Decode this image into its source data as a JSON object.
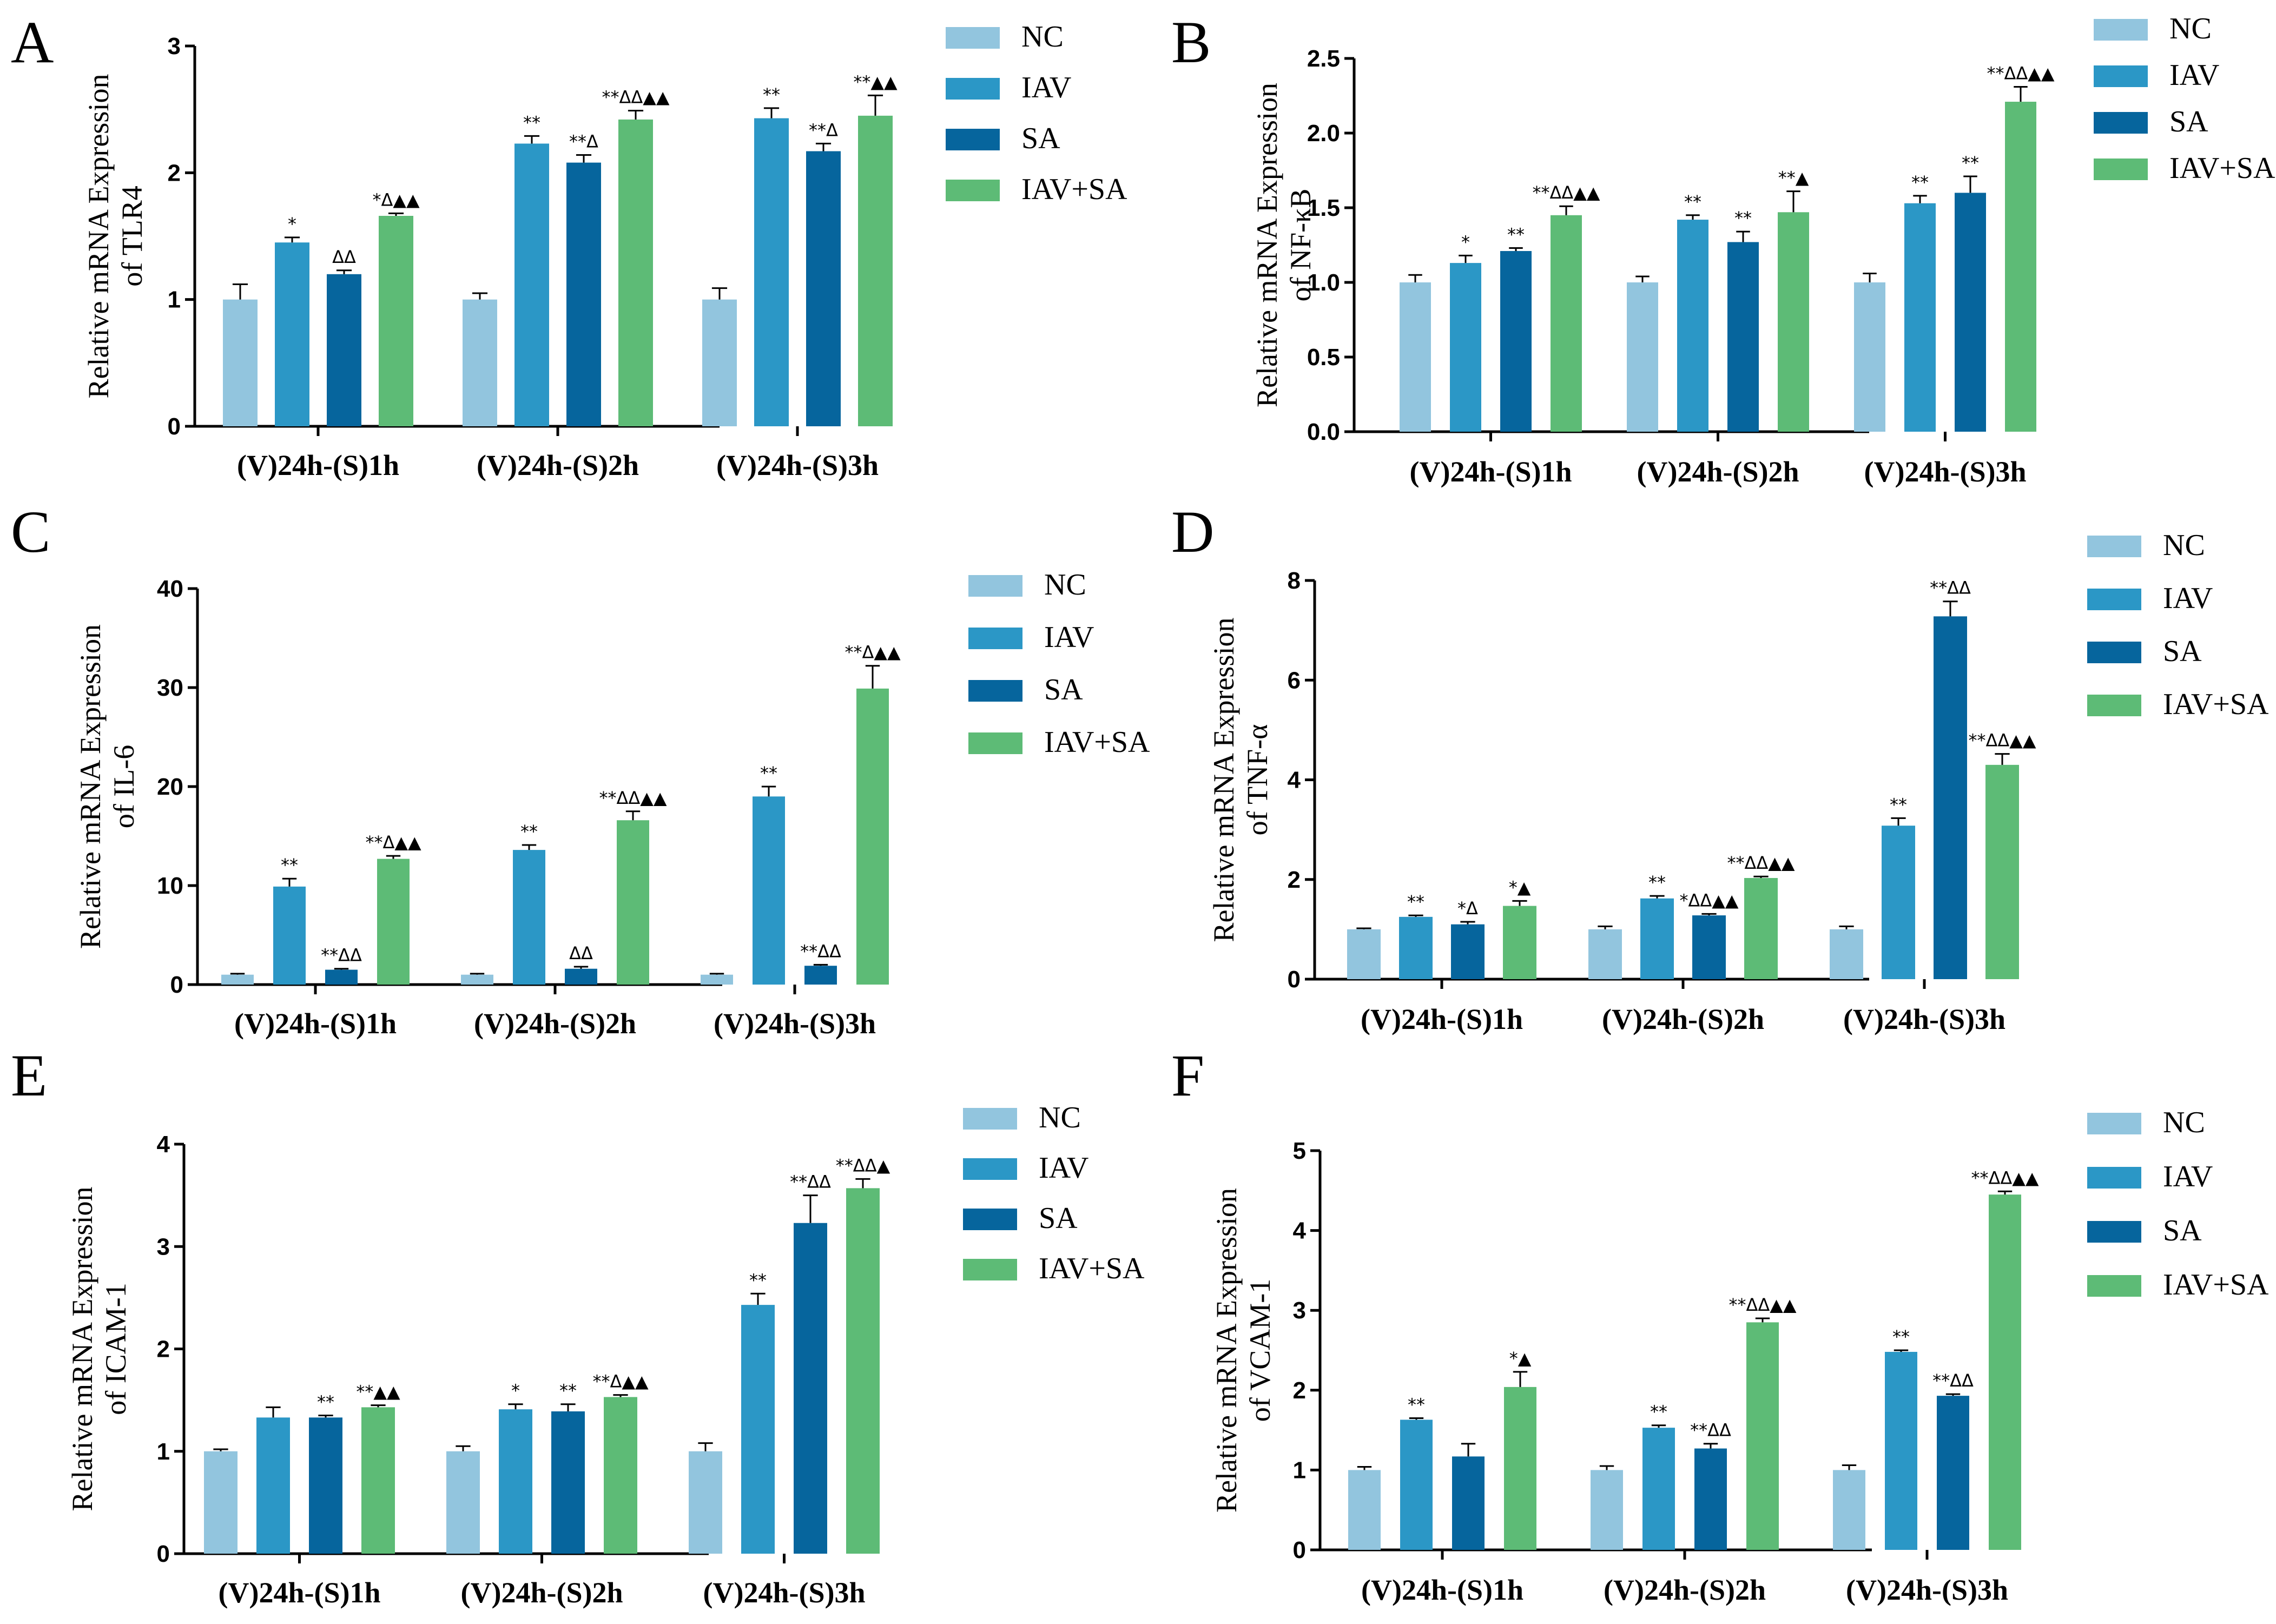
{
  "figure": {
    "series_colors": {
      "NC": "#92c5de",
      "IAV": "#2b97c6",
      "SA": "#06659d",
      "IAV+SA": "#5dbb76"
    }
  },
  "chart_data": [
    {
      "panel": "A",
      "type": "bar",
      "ylabel": [
        "Relative mRNA Expression",
        "of TLR4"
      ],
      "ylim": [
        0,
        3
      ],
      "yticks": [
        "0",
        "1",
        "2",
        "3"
      ],
      "categories": [
        "(V)24h-(S)1h",
        "(V)24h-(S)2h",
        "(V)24h-(S)3h"
      ],
      "legend": [
        "NC",
        "IAV",
        "SA",
        "IAV+SA"
      ],
      "series": [
        {
          "name": "NC",
          "values": [
            1.0,
            1.0,
            1.0
          ],
          "errors": [
            0.12,
            0.05,
            0.09
          ],
          "annotations": [
            "",
            "",
            ""
          ]
        },
        {
          "name": "IAV",
          "values": [
            1.45,
            2.23,
            2.43
          ],
          "errors": [
            0.04,
            0.06,
            0.08
          ],
          "annotations": [
            "*",
            "**",
            "**"
          ]
        },
        {
          "name": "SA",
          "values": [
            1.2,
            2.08,
            2.17
          ],
          "errors": [
            0.03,
            0.06,
            0.06
          ],
          "annotations": [
            "ΔΔ",
            "**Δ",
            "**Δ"
          ]
        },
        {
          "name": "IAV+SA",
          "values": [
            1.66,
            2.42,
            2.45
          ],
          "errors": [
            0.02,
            0.07,
            0.16
          ],
          "annotations": [
            "*Δ▲▲",
            "**ΔΔ▲▲",
            "**▲▲"
          ]
        }
      ]
    },
    {
      "panel": "B",
      "type": "bar",
      "ylabel": [
        "Relative mRNA Expression",
        "of NF-κB"
      ],
      "ylim": [
        0,
        2.5
      ],
      "yticks": [
        "0.0",
        "0.5",
        "1.0",
        "1.5",
        "2.0",
        "2.5"
      ],
      "categories": [
        "(V)24h-(S)1h",
        "(V)24h-(S)2h",
        "(V)24h-(S)3h"
      ],
      "legend": [
        "NC",
        "IAV",
        "SA",
        "IAV+SA"
      ],
      "series": [
        {
          "name": "NC",
          "values": [
            1.0,
            1.0,
            1.0
          ],
          "errors": [
            0.05,
            0.04,
            0.06
          ],
          "annotations": [
            "",
            "",
            ""
          ]
        },
        {
          "name": "IAV",
          "values": [
            1.13,
            1.42,
            1.53
          ],
          "errors": [
            0.05,
            0.03,
            0.05
          ],
          "annotations": [
            "*",
            "**",
            "**"
          ]
        },
        {
          "name": "SA",
          "values": [
            1.21,
            1.27,
            1.6
          ],
          "errors": [
            0.02,
            0.07,
            0.11
          ],
          "annotations": [
            "**",
            "**",
            "**"
          ]
        },
        {
          "name": "IAV+SA",
          "values": [
            1.45,
            1.47,
            2.21
          ],
          "errors": [
            0.06,
            0.14,
            0.1
          ],
          "annotations": [
            "**ΔΔ▲▲",
            "**▲",
            "**ΔΔ▲▲"
          ]
        }
      ]
    },
    {
      "panel": "C",
      "type": "bar",
      "ylabel": [
        "Relative mRNA Expression",
        "of IL-6"
      ],
      "ylim": [
        0,
        40
      ],
      "yticks": [
        "0",
        "10",
        "20",
        "30",
        "40"
      ],
      "categories": [
        "(V)24h-(S)1h",
        "(V)24h-(S)2h",
        "(V)24h-(S)3h"
      ],
      "legend": [
        "NC",
        "IAV",
        "SA",
        "IAV+SA"
      ],
      "series": [
        {
          "name": "NC",
          "values": [
            1.0,
            1.0,
            1.0
          ],
          "errors": [
            0.1,
            0.1,
            0.1
          ],
          "annotations": [
            "",
            "",
            ""
          ]
        },
        {
          "name": "IAV",
          "values": [
            9.9,
            13.6,
            19.0
          ],
          "errors": [
            0.8,
            0.5,
            1.0
          ],
          "annotations": [
            "**",
            "**",
            "**"
          ]
        },
        {
          "name": "SA",
          "values": [
            1.5,
            1.6,
            1.9
          ],
          "errors": [
            0.1,
            0.2,
            0.1
          ],
          "annotations": [
            "**ΔΔ",
            "ΔΔ",
            "**ΔΔ"
          ]
        },
        {
          "name": "IAV+SA",
          "values": [
            12.7,
            16.6,
            29.9
          ],
          "errors": [
            0.3,
            0.9,
            2.3
          ],
          "annotations": [
            "**Δ▲▲",
            "**ΔΔ▲▲",
            "**Δ▲▲"
          ]
        }
      ]
    },
    {
      "panel": "D",
      "type": "bar",
      "ylabel": [
        "Relative mRNA Expression",
        "of TNF-α"
      ],
      "ylim": [
        0,
        8
      ],
      "yticks": [
        "0",
        "2",
        "4",
        "6",
        "8"
      ],
      "categories": [
        "(V)24h-(S)1h",
        "(V)24h-(S)2h",
        "(V)24h-(S)3h"
      ],
      "legend": [
        "NC",
        "IAV",
        "SA",
        "IAV+SA"
      ],
      "series": [
        {
          "name": "NC",
          "values": [
            1.0,
            1.0,
            1.0
          ],
          "errors": [
            0.02,
            0.06,
            0.06
          ],
          "annotations": [
            "",
            "",
            ""
          ]
        },
        {
          "name": "IAV",
          "values": [
            1.25,
            1.62,
            3.08
          ],
          "errors": [
            0.03,
            0.05,
            0.15
          ],
          "annotations": [
            "**",
            "**",
            "**"
          ]
        },
        {
          "name": "SA",
          "values": [
            1.1,
            1.28,
            7.28
          ],
          "errors": [
            0.05,
            0.03,
            0.3
          ],
          "annotations": [
            "*Δ",
            "*ΔΔ▲▲",
            "**ΔΔ"
          ]
        },
        {
          "name": "IAV+SA",
          "values": [
            1.47,
            2.03,
            4.3
          ],
          "errors": [
            0.1,
            0.03,
            0.22
          ],
          "annotations": [
            "*▲",
            "**ΔΔ▲▲",
            "**ΔΔ▲▲"
          ]
        }
      ]
    },
    {
      "panel": "E",
      "type": "bar",
      "ylabel": [
        "Relative mRNA Expression",
        "of ICAM-1"
      ],
      "ylim": [
        0,
        4
      ],
      "yticks": [
        "0",
        "1",
        "2",
        "3",
        "4"
      ],
      "categories": [
        "(V)24h-(S)1h",
        "(V)24h-(S)2h",
        "(V)24h-(S)3h"
      ],
      "legend": [
        "NC",
        "IAV",
        "SA",
        "IAV+SA"
      ],
      "series": [
        {
          "name": "NC",
          "values": [
            1.0,
            1.0,
            1.0
          ],
          "errors": [
            0.02,
            0.05,
            0.08
          ],
          "annotations": [
            "",
            "",
            ""
          ]
        },
        {
          "name": "IAV",
          "values": [
            1.33,
            1.41,
            2.43
          ],
          "errors": [
            0.1,
            0.05,
            0.11
          ],
          "annotations": [
            "",
            "*",
            "**"
          ]
        },
        {
          "name": "SA",
          "values": [
            1.33,
            1.39,
            3.23
          ],
          "errors": [
            0.02,
            0.07,
            0.27
          ],
          "annotations": [
            "**",
            "**",
            "**ΔΔ"
          ]
        },
        {
          "name": "IAV+SA",
          "values": [
            1.43,
            1.53,
            3.57
          ],
          "errors": [
            0.02,
            0.02,
            0.09
          ],
          "annotations": [
            "**▲▲",
            "**Δ▲▲",
            "**ΔΔ▲"
          ]
        }
      ]
    },
    {
      "panel": "F",
      "type": "bar",
      "ylabel": [
        "Relative mRNA Expression",
        "of VCAM-1"
      ],
      "ylim": [
        0,
        5
      ],
      "yticks": [
        "0",
        "1",
        "2",
        "3",
        "4",
        "5"
      ],
      "categories": [
        "(V)24h-(S)1h",
        "(V)24h-(S)2h",
        "(V)24h-(S)3h"
      ],
      "legend": [
        "NC",
        "IAV",
        "SA",
        "IAV+SA"
      ],
      "series": [
        {
          "name": "NC",
          "values": [
            1.0,
            1.0,
            1.0
          ],
          "errors": [
            0.04,
            0.05,
            0.06
          ],
          "annotations": [
            "",
            "",
            ""
          ]
        },
        {
          "name": "IAV",
          "values": [
            1.63,
            1.53,
            2.48
          ],
          "errors": [
            0.02,
            0.03,
            0.02
          ],
          "annotations": [
            "**",
            "**",
            "**"
          ]
        },
        {
          "name": "SA",
          "values": [
            1.17,
            1.27,
            1.93
          ],
          "errors": [
            0.16,
            0.06,
            0.02
          ],
          "annotations": [
            "",
            "**ΔΔ",
            "**ΔΔ"
          ]
        },
        {
          "name": "IAV+SA",
          "values": [
            2.04,
            2.85,
            4.45
          ],
          "errors": [
            0.19,
            0.05,
            0.04
          ],
          "annotations": [
            "*▲",
            "**ΔΔ▲▲",
            "**ΔΔ▲▲"
          ]
        }
      ]
    }
  ]
}
